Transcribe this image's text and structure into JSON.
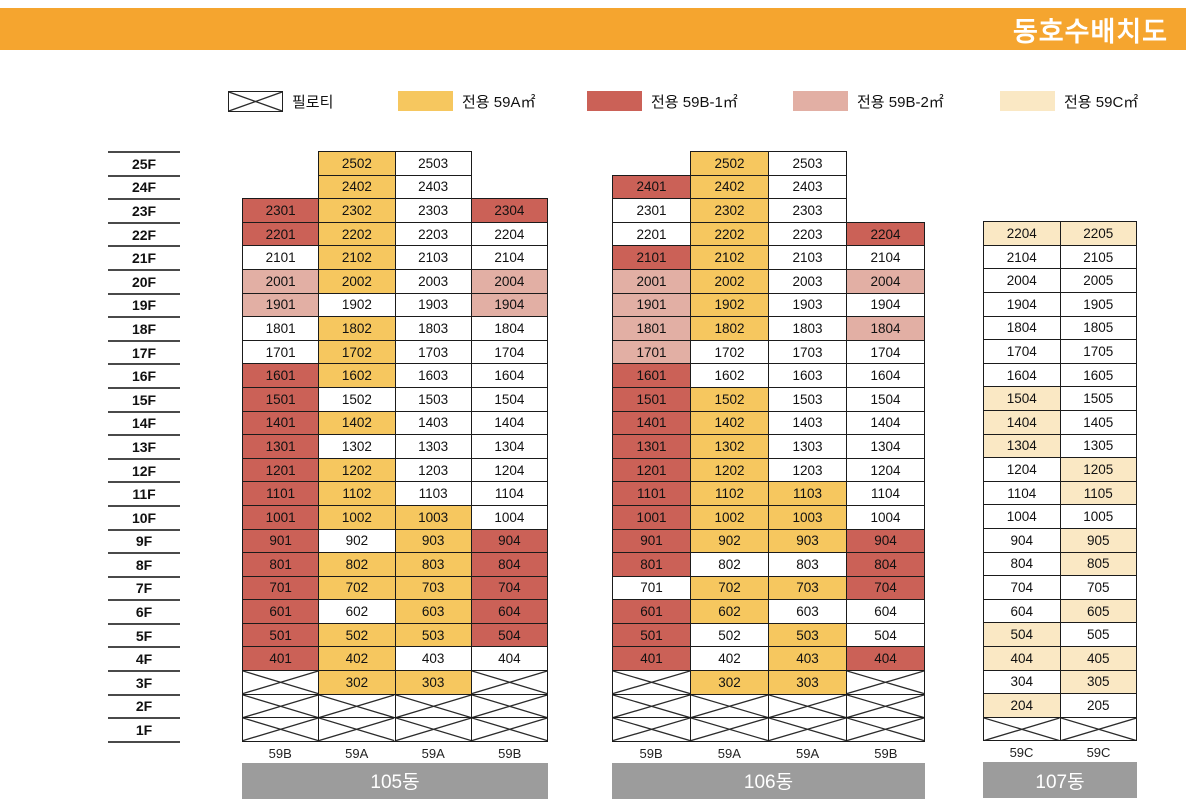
{
  "title": "동호수배치도",
  "colors": {
    "header_bg": "#F5A52F",
    "unit_59A": "#F6C75F",
    "unit_59B1": "#CB6157",
    "unit_59B2": "#E2AFA4",
    "unit_59C": "#FAE8C4",
    "white_unit": "#FFFFFF",
    "building_label_bg": "#9C9C9C",
    "grid_line": "#1b1b1b"
  },
  "legend": {
    "items": [
      {
        "key": "piloti",
        "label": "필로티"
      },
      {
        "key": "A",
        "label": "전용 59A㎡"
      },
      {
        "key": "B",
        "label": "전용 59B-1㎡"
      },
      {
        "key": "P",
        "label": "전용 59B-2㎡"
      },
      {
        "key": "C",
        "label": "전용 59C㎡"
      }
    ]
  },
  "floors": [
    "25F",
    "24F",
    "23F",
    "22F",
    "21F",
    "20F",
    "19F",
    "18F",
    "17F",
    "16F",
    "15F",
    "14F",
    "13F",
    "12F",
    "11F",
    "10F",
    "9F",
    "8F",
    "7F",
    "6F",
    "5F",
    "4F",
    "3F",
    "2F",
    "1F"
  ],
  "buildings": [
    {
      "name": "105동",
      "unit_types": [
        "59B",
        "59A",
        "59A",
        "59B"
      ],
      "rows": [
        [
          "",
          "2502|A",
          "2503|W",
          ""
        ],
        [
          "",
          "2402|A",
          "2403|W",
          ""
        ],
        [
          "2301|B",
          "2302|A",
          "2303|W",
          "2304|B"
        ],
        [
          "2201|B",
          "2202|A",
          "2203|W",
          "2204|W"
        ],
        [
          "2101|W",
          "2102|A",
          "2103|W",
          "2104|W"
        ],
        [
          "2001|P",
          "2002|A",
          "2003|W",
          "2004|P"
        ],
        [
          "1901|P",
          "1902|W",
          "1903|W",
          "1904|P"
        ],
        [
          "1801|W",
          "1802|A",
          "1803|W",
          "1804|W"
        ],
        [
          "1701|W",
          "1702|A",
          "1703|W",
          "1704|W"
        ],
        [
          "1601|B",
          "1602|A",
          "1603|W",
          "1604|W"
        ],
        [
          "1501|B",
          "1502|W",
          "1503|W",
          "1504|W"
        ],
        [
          "1401|B",
          "1402|A",
          "1403|W",
          "1404|W"
        ],
        [
          "1301|B",
          "1302|W",
          "1303|W",
          "1304|W"
        ],
        [
          "1201|B",
          "1202|A",
          "1203|W",
          "1204|W"
        ],
        [
          "1101|B",
          "1102|A",
          "1103|W",
          "1104|W"
        ],
        [
          "1001|B",
          "1002|A",
          "1003|A",
          "1004|W"
        ],
        [
          "901|B",
          "902|W",
          "903|A",
          "904|B"
        ],
        [
          "801|B",
          "802|A",
          "803|A",
          "804|B"
        ],
        [
          "701|B",
          "702|A",
          "703|A",
          "704|B"
        ],
        [
          "601|B",
          "602|W",
          "603|A",
          "604|B"
        ],
        [
          "501|B",
          "502|A",
          "503|A",
          "504|B"
        ],
        [
          "401|B",
          "402|A",
          "403|W",
          "404|W"
        ],
        [
          "X",
          "302|A",
          "303|A",
          "X"
        ],
        [
          "X",
          "X",
          "X",
          "X"
        ],
        [
          "X",
          "X",
          "X",
          "X"
        ]
      ]
    },
    {
      "name": "106동",
      "unit_types": [
        "59B",
        "59A",
        "59A",
        "59B"
      ],
      "rows": [
        [
          "",
          "2502|A",
          "2503|W",
          ""
        ],
        [
          "2401|B",
          "2402|A",
          "2403|W",
          ""
        ],
        [
          "2301|W",
          "2302|A",
          "2303|W",
          ""
        ],
        [
          "2201|W",
          "2202|A",
          "2203|W",
          "2204|B"
        ],
        [
          "2101|B",
          "2102|A",
          "2103|W",
          "2104|W"
        ],
        [
          "2001|P",
          "2002|A",
          "2003|W",
          "2004|P"
        ],
        [
          "1901|P",
          "1902|A",
          "1903|W",
          "1904|W"
        ],
        [
          "1801|P",
          "1802|A",
          "1803|W",
          "1804|P"
        ],
        [
          "1701|P",
          "1702|W",
          "1703|W",
          "1704|W"
        ],
        [
          "1601|B",
          "1602|W",
          "1603|W",
          "1604|W"
        ],
        [
          "1501|B",
          "1502|A",
          "1503|W",
          "1504|W"
        ],
        [
          "1401|B",
          "1402|A",
          "1403|W",
          "1404|W"
        ],
        [
          "1301|B",
          "1302|A",
          "1303|W",
          "1304|W"
        ],
        [
          "1201|B",
          "1202|A",
          "1203|W",
          "1204|W"
        ],
        [
          "1101|B",
          "1102|A",
          "1103|A",
          "1104|W"
        ],
        [
          "1001|B",
          "1002|A",
          "1003|A",
          "1004|W"
        ],
        [
          "901|B",
          "902|A",
          "903|A",
          "904|B"
        ],
        [
          "801|B",
          "802|W",
          "803|W",
          "804|B"
        ],
        [
          "701|W",
          "702|A",
          "703|A",
          "704|B"
        ],
        [
          "601|B",
          "602|A",
          "603|W",
          "604|W"
        ],
        [
          "501|B",
          "502|W",
          "503|A",
          "504|W"
        ],
        [
          "401|B",
          "402|W",
          "403|A",
          "404|B"
        ],
        [
          "X",
          "302|A",
          "303|A",
          "X"
        ],
        [
          "X",
          "X",
          "X",
          "X"
        ],
        [
          "X",
          "X",
          "X",
          "X"
        ]
      ]
    },
    {
      "name": "107동",
      "unit_types": [
        "59C",
        "59C"
      ],
      "rows": [
        [
          "",
          ""
        ],
        [
          "",
          ""
        ],
        [
          "",
          ""
        ],
        [
          "2204|C",
          "2205|C"
        ],
        [
          "2104|W",
          "2105|W"
        ],
        [
          "2004|W",
          "2005|W"
        ],
        [
          "1904|W",
          "1905|W"
        ],
        [
          "1804|W",
          "1805|W"
        ],
        [
          "1704|W",
          "1705|W"
        ],
        [
          "1604|W",
          "1605|W"
        ],
        [
          "1504|C",
          "1505|W"
        ],
        [
          "1404|C",
          "1405|W"
        ],
        [
          "1304|C",
          "1305|W"
        ],
        [
          "1204|W",
          "1205|C"
        ],
        [
          "1104|W",
          "1105|C"
        ],
        [
          "1004|W",
          "1005|W"
        ],
        [
          "904|W",
          "905|C"
        ],
        [
          "804|W",
          "805|C"
        ],
        [
          "704|W",
          "705|W"
        ],
        [
          "604|W",
          "605|C"
        ],
        [
          "504|C",
          "505|W"
        ],
        [
          "404|C",
          "405|C"
        ],
        [
          "304|W",
          "305|C"
        ],
        [
          "204|C",
          "205|W"
        ],
        [
          "X",
          "X"
        ]
      ]
    }
  ]
}
